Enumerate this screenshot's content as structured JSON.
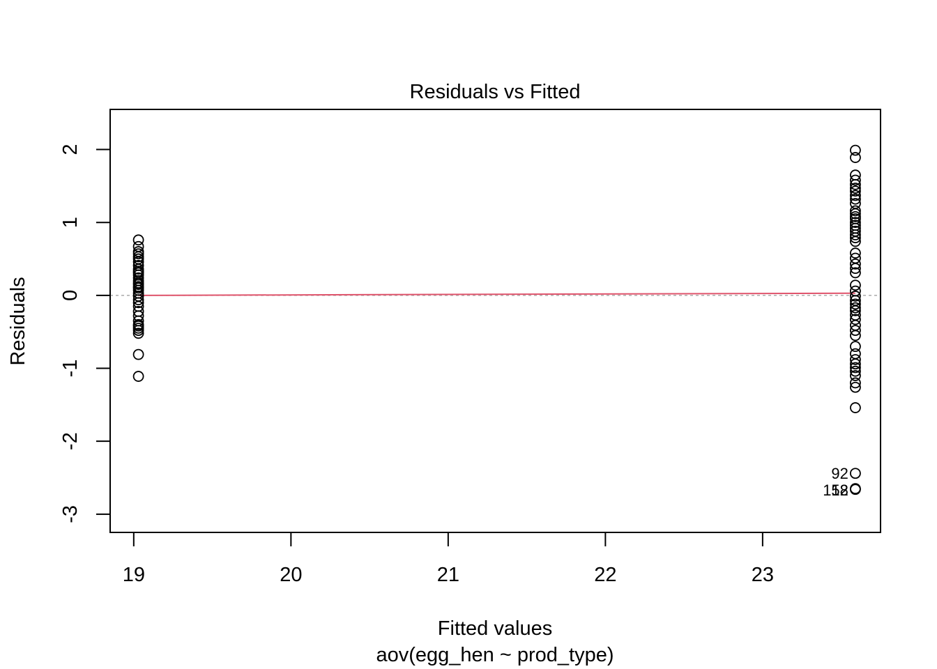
{
  "chart_data": {
    "type": "scatter",
    "title": "Residuals vs Fitted",
    "xlabel": "Fitted values",
    "subtitle": "aov(egg_hen ~ prod_type)",
    "ylabel": "Residuals",
    "xlim": [
      18.85,
      23.75
    ],
    "ylim": [
      -3.25,
      2.55
    ],
    "x_ticks": [
      19,
      20,
      21,
      22,
      23
    ],
    "y_ticks": [
      -3,
      -2,
      -1,
      0,
      1,
      2
    ],
    "x_tick_labels": [
      "19",
      "20",
      "21",
      "22",
      "23"
    ],
    "y_tick_labels": [
      "-3",
      "-2",
      "-1",
      "0",
      "1",
      "2"
    ],
    "grid": false,
    "zero_line": {
      "y": 0,
      "style": "dashed",
      "color": "#aaaaaa"
    },
    "smoother": {
      "color": "#df536b",
      "x": [
        19.03,
        23.59
      ],
      "y": [
        0.0,
        0.03
      ]
    },
    "point_style": {
      "shape": "open-circle",
      "color": "#000000"
    },
    "groups": [
      {
        "x": 19.03,
        "residuals": [
          0.76,
          0.67,
          0.6,
          0.57,
          0.53,
          0.5,
          0.46,
          0.41,
          0.36,
          0.33,
          0.31,
          0.28,
          0.24,
          0.2,
          0.17,
          0.15,
          0.12,
          0.1,
          0.07,
          0.03,
          -0.01,
          -0.06,
          -0.1,
          -0.15,
          -0.22,
          -0.28,
          -0.35,
          -0.4,
          -0.42,
          -0.45,
          -0.48,
          -0.52,
          -0.81,
          -1.11
        ]
      },
      {
        "x": 23.59,
        "residuals": [
          1.99,
          1.89,
          1.65,
          1.58,
          1.52,
          1.47,
          1.43,
          1.37,
          1.32,
          1.26,
          1.16,
          1.12,
          1.08,
          1.05,
          1.0,
          0.96,
          0.92,
          0.88,
          0.83,
          0.79,
          0.74,
          0.58,
          0.51,
          0.43,
          0.37,
          0.31,
          0.14,
          0.06,
          -0.01,
          -0.07,
          -0.12,
          -0.17,
          -0.21,
          -0.27,
          -0.33,
          -0.41,
          -0.48,
          -0.55,
          -0.7,
          -0.8,
          -0.88,
          -0.94,
          -0.99,
          -1.04,
          -1.1,
          -1.2,
          -1.26,
          -1.54,
          -2.44,
          -2.65,
          -2.66
        ]
      }
    ],
    "annotations": [
      {
        "label": "92",
        "x": 23.59,
        "y": -2.44
      },
      {
        "label": "158",
        "x": 23.59,
        "y": -2.65
      },
      {
        "label": "12",
        "x": 23.59,
        "y": -2.65
      }
    ]
  }
}
